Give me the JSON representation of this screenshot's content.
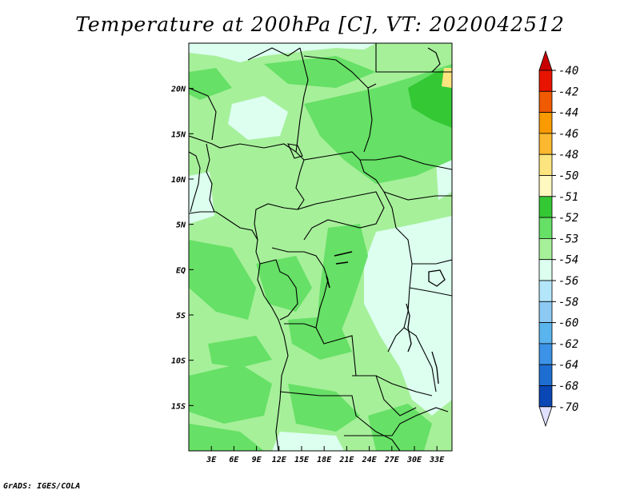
{
  "title": "Temperature at 200hPa [C], VT: 2020042512",
  "credit": "GrADS: IGES/COLA",
  "map": {
    "lon_range": [
      0,
      35
    ],
    "lat_range": [
      -20,
      25
    ],
    "lon_ticks": [
      "3E",
      "6E",
      "9E",
      "12E",
      "15E",
      "18E",
      "21E",
      "24E",
      "27E",
      "30E",
      "33E"
    ],
    "lon_values": [
      3,
      6,
      9,
      12,
      15,
      18,
      21,
      24,
      27,
      30,
      33
    ],
    "lat_ticks": [
      "20N",
      "15N",
      "10N",
      "5N",
      "EQ",
      "5S",
      "10S",
      "15S"
    ],
    "lat_values": [
      20,
      15,
      10,
      5,
      0,
      -5,
      -10,
      -15
    ]
  },
  "colorbar": {
    "labels": [
      "-40",
      "-42",
      "-44",
      "-46",
      "-48",
      "-50",
      "-51",
      "-52",
      "-53",
      "-54",
      "-56",
      "-58",
      "-60",
      "-62",
      "-64",
      "-68",
      "-70"
    ],
    "colors": [
      "#e81400",
      "#f05a00",
      "#f89a00",
      "#fbb830",
      "#fce57e",
      "#fff8c0",
      "#34c834",
      "#66e066",
      "#a6f09a",
      "#dcfff0",
      "#b4e6fa",
      "#8ccaf4",
      "#5ab4ee",
      "#3c92e6",
      "#1e6ed2",
      "#0a46b4",
      "#001a7a"
    ],
    "top_cap": "#c80000",
    "bottom_cap": "#e0e0ff"
  }
}
